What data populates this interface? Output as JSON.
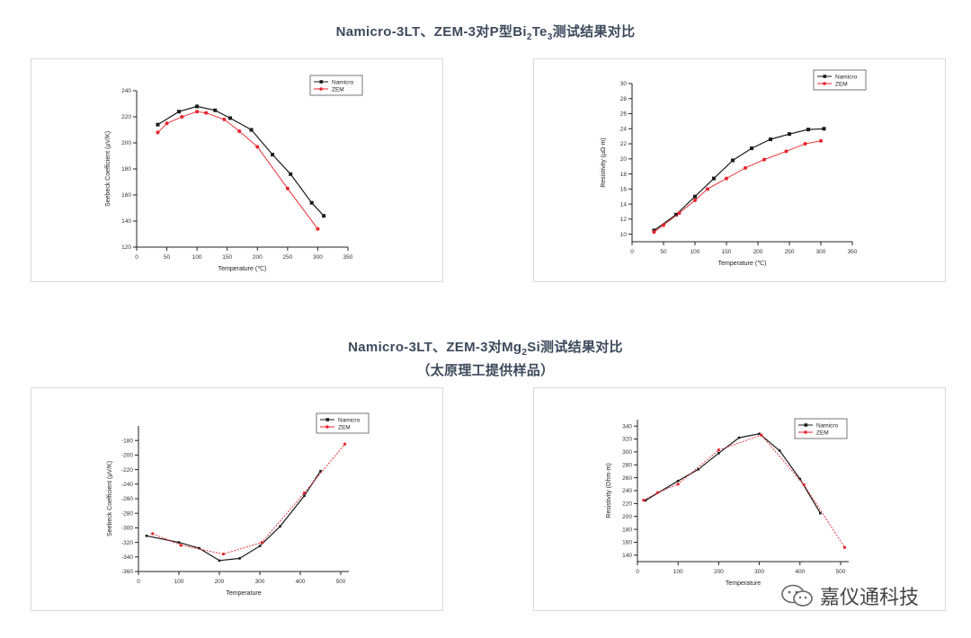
{
  "headings": {
    "top": {
      "pre": "Namicro-3LT、ZEM-3对P型Bi",
      "s1": "2",
      "mid": "Te",
      "s2": "3",
      "post": "测试结果对比"
    },
    "bottom": {
      "pre": "Namicro-3LT、ZEM-3对Mg",
      "s1": "2",
      "post": "Si测试结果对比",
      "line2": "（太原理工提供样品）"
    }
  },
  "watermark": {
    "text": "嘉仪通科技",
    "icon": "wechat-icon"
  },
  "colors": {
    "namicro": "#1a1a1a",
    "zem": "#e8232a",
    "axis": "#222222"
  },
  "chart_data": [
    {
      "type": "line",
      "xlabel": "Temperature (℃)",
      "ylabel": "Seebeck Coefficient (μV/K)",
      "xlim": [
        0,
        350
      ],
      "ylim": [
        120,
        240
      ],
      "xticks": [
        0,
        50,
        100,
        150,
        200,
        250,
        300,
        350
      ],
      "yticks": [
        120,
        140,
        160,
        180,
        200,
        220,
        240
      ],
      "legend": "top-right",
      "series": [
        {
          "name": "Namicro",
          "x": [
            35,
            70,
            100,
            130,
            155,
            190,
            225,
            255,
            290,
            310
          ],
          "y": [
            214,
            224,
            228,
            225,
            219,
            210,
            191,
            176,
            154,
            144
          ]
        },
        {
          "name": "ZEM",
          "x": [
            35,
            50,
            75,
            100,
            115,
            145,
            170,
            200,
            250,
            300
          ],
          "y": [
            208,
            215,
            220,
            224,
            223,
            218,
            209,
            197,
            165,
            134
          ]
        }
      ]
    },
    {
      "type": "line",
      "xlabel": "Temperature (℃)",
      "ylabel": "Resistivity (μΩ·m)",
      "xlim": [
        0,
        350
      ],
      "ylim": [
        9,
        30
      ],
      "xticks": [
        0,
        50,
        100,
        150,
        200,
        250,
        300,
        350
      ],
      "yticks": [
        10,
        12,
        14,
        16,
        18,
        20,
        22,
        24,
        26,
        28,
        30
      ],
      "legend": "top-right",
      "series": [
        {
          "name": "Namicro",
          "x": [
            35,
            70,
            100,
            130,
            160,
            190,
            220,
            250,
            280,
            305
          ],
          "y": [
            10.5,
            12.6,
            15.0,
            17.4,
            19.8,
            21.4,
            22.6,
            23.3,
            23.9,
            24.0
          ]
        },
        {
          "name": "ZEM",
          "x": [
            35,
            50,
            75,
            100,
            120,
            150,
            180,
            210,
            245,
            275,
            300
          ],
          "y": [
            10.3,
            11.2,
            12.8,
            14.5,
            16.0,
            17.4,
            18.8,
            19.9,
            21.0,
            22.0,
            22.4
          ]
        }
      ]
    },
    {
      "type": "line",
      "xlabel": "Temperature",
      "ylabel": "Seebeck Coefficient (μV/K)",
      "xlim": [
        0,
        520
      ],
      "ylim": [
        -360,
        -160
      ],
      "xticks": [
        0,
        100,
        200,
        300,
        400,
        500
      ],
      "yticks": [
        -180,
        -200,
        -220,
        -240,
        -260,
        -280,
        -300,
        -320,
        -340,
        -360
      ],
      "legend": "top-right",
      "series": [
        {
          "name": "Namicro",
          "x": [
            20,
            100,
            150,
            200,
            250,
            300,
            350,
            410,
            450
          ],
          "y": [
            -311,
            -320,
            -328,
            -345,
            -342,
            -325,
            -298,
            -256,
            -222
          ]
        },
        {
          "name": "ZEM",
          "x": [
            35,
            105,
            210,
            305,
            410,
            510
          ],
          "y": [
            -308,
            -324,
            -336,
            -320,
            -252,
            -185
          ]
        }
      ]
    },
    {
      "type": "line",
      "xlabel": "Temperature",
      "ylabel": "Resistivity (Ohm·m)",
      "xlim": [
        0,
        520
      ],
      "ylim": [
        130,
        350
      ],
      "xticks": [
        0,
        100,
        200,
        300,
        400,
        500
      ],
      "yticks": [
        140,
        160,
        180,
        200,
        220,
        240,
        260,
        280,
        300,
        320,
        340
      ],
      "legend": "top-right",
      "series": [
        {
          "name": "Namicro",
          "x": [
            20,
            100,
            150,
            200,
            250,
            300,
            350,
            400,
            450
          ],
          "y": [
            225,
            255,
            273,
            298,
            322,
            328,
            302,
            258,
            205
          ]
        },
        {
          "name": "ZEM",
          "x": [
            15,
            50,
            100,
            200,
            305,
            410,
            510
          ],
          "y": [
            225,
            237,
            250,
            303,
            326,
            249,
            152
          ]
        }
      ]
    }
  ]
}
